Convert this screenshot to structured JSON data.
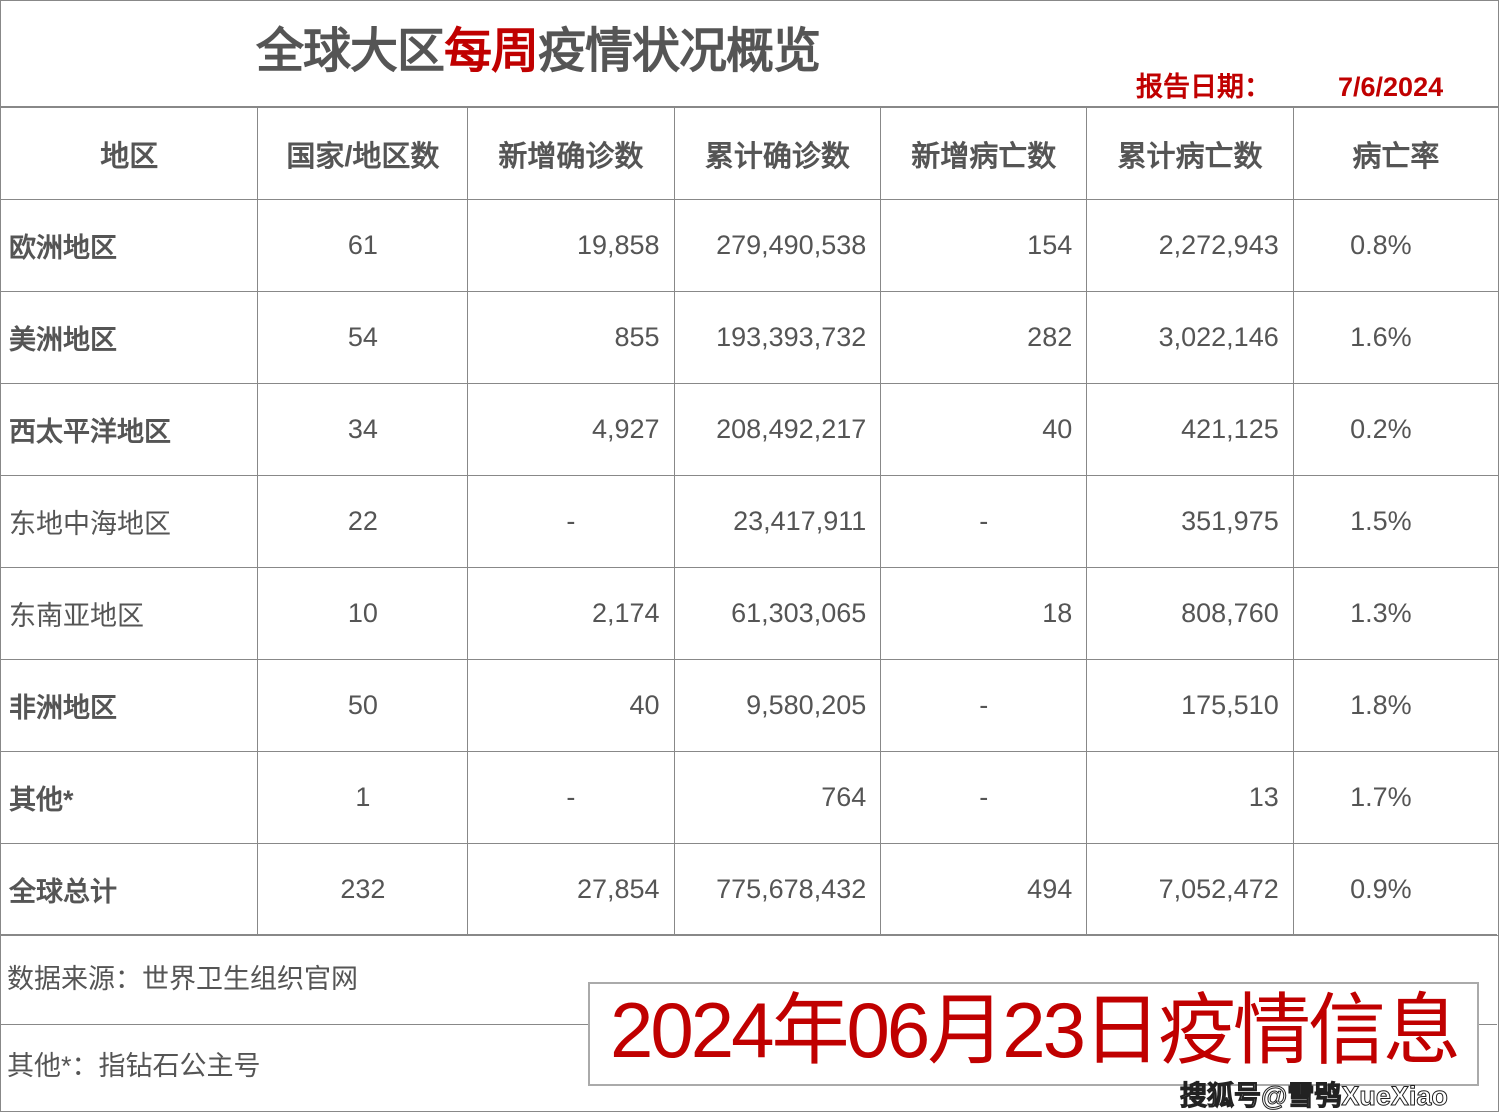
{
  "header": {
    "title_prefix": "全球大区",
    "title_highlight": "每周",
    "title_suffix": "疫情状况概览",
    "report_date_label": "报告日期：",
    "report_date": "7/6/2024"
  },
  "columns": [
    "地区",
    "国家/地区数",
    "新增确诊数",
    "累计确诊数",
    "新增病亡数",
    "累计病亡数",
    "病亡率"
  ],
  "rows": [
    {
      "region": "欧洲地区",
      "bold": true,
      "cells": [
        "61",
        "19,858",
        "279,490,538",
        "154",
        "2,272,943",
        "0.8%"
      ]
    },
    {
      "region": "美洲地区",
      "bold": true,
      "cells": [
        "54",
        "855",
        "193,393,732",
        "282",
        "3,022,146",
        "1.6%"
      ]
    },
    {
      "region": "西太平洋地区",
      "bold": true,
      "cells": [
        "34",
        "4,927",
        "208,492,217",
        "40",
        "421,125",
        "0.2%"
      ]
    },
    {
      "region": "东地中海地区",
      "bold": false,
      "cells": [
        "22",
        "-",
        "23,417,911",
        "-",
        "351,975",
        "1.5%"
      ]
    },
    {
      "region": "东南亚地区",
      "bold": false,
      "cells": [
        "10",
        "2,174",
        "61,303,065",
        "18",
        "808,760",
        "1.3%"
      ]
    },
    {
      "region": "非洲地区",
      "bold": true,
      "cells": [
        "50",
        "40",
        "9,580,205",
        "-",
        "175,510",
        "1.8%"
      ]
    },
    {
      "region": "其他*",
      "bold": true,
      "cells": [
        "1",
        "-",
        "764",
        "-",
        "13",
        "1.7%"
      ]
    },
    {
      "region": "全球总计",
      "bold": true,
      "cells": [
        "232",
        "27,854",
        "775,678,432",
        "494",
        "7,052,472",
        "0.9%"
      ]
    }
  ],
  "footer": {
    "source": "数据来源：世界卫生组织官网",
    "note": "其他*：指钻石公主号"
  },
  "overlay": {
    "text": "2024年06月23日疫情信息"
  },
  "watermark": "搜狐号@雪鸮XueXiao",
  "colors": {
    "accent": "#c00000",
    "text": "#555555",
    "border": "#888888"
  }
}
